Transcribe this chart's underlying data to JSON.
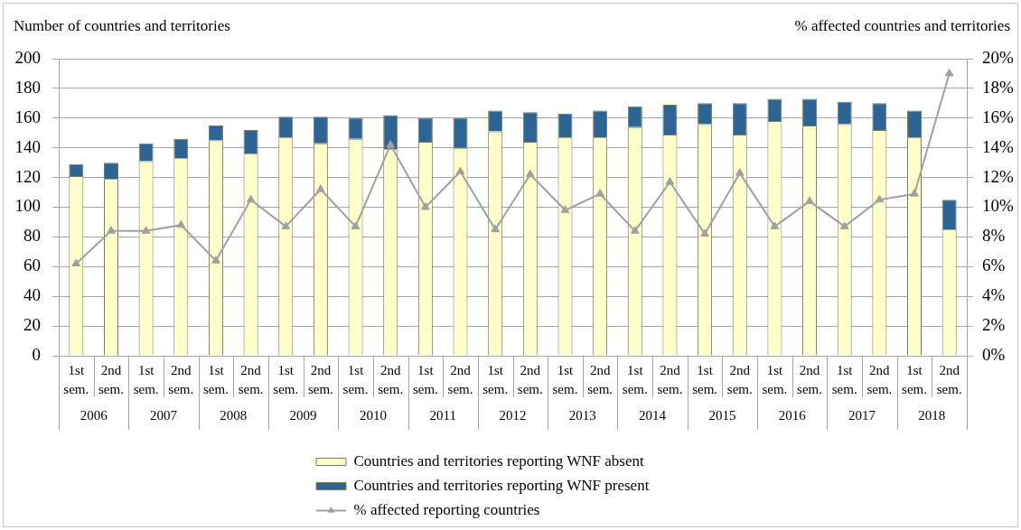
{
  "chart_data": {
    "type": "bar",
    "stacked": true,
    "ylabel": "Number of countries and territories",
    "y2label": "% affected countries and territories",
    "categories": [
      "1st sem.",
      "2nd sem.",
      "1st sem.",
      "2nd sem.",
      "1st sem.",
      "2nd sem.",
      "1st sem.",
      "2nd sem.",
      "1st sem.",
      "2nd sem.",
      "1st sem.",
      "2nd sem.",
      "1st sem.",
      "2nd sem.",
      "1st sem.",
      "2nd sem.",
      "1st sem.",
      "2nd sem.",
      "1st sem.",
      "2nd sem.",
      "1st sem.",
      "2nd sem.",
      "1st sem.",
      "2nd sem.",
      "1st sem.",
      "2nd sem."
    ],
    "annotations": [
      "2006",
      "2007",
      "2008",
      "2009",
      "2010",
      "2011",
      "2012",
      "2013",
      "2014",
      "2015",
      "2016",
      "2017",
      "2018"
    ],
    "series": [
      {
        "name": "Countries and territories reporting WNF absent",
        "color": "#ffffcc",
        "values": [
          121,
          119,
          131,
          133,
          145,
          136,
          147,
          143,
          146,
          139,
          144,
          140,
          151,
          144,
          147,
          147,
          154,
          149,
          156,
          149,
          158,
          155,
          156,
          152,
          147,
          85
        ]
      },
      {
        "name": "Countries and territories reporting WNF present",
        "color": "#2c6494",
        "values": [
          8,
          11,
          12,
          13,
          10,
          16,
          14,
          18,
          14,
          23,
          16,
          20,
          14,
          20,
          16,
          18,
          14,
          20,
          14,
          21,
          15,
          18,
          15,
          18,
          18,
          20
        ]
      },
      {
        "name": "% affected reporting countries",
        "type": "line",
        "axis": "y2",
        "color": "#a0a0a0",
        "values": [
          6.2,
          8.4,
          8.4,
          8.8,
          6.4,
          10.5,
          8.7,
          11.2,
          8.7,
          14.2,
          10.0,
          12.4,
          8.5,
          12.2,
          9.8,
          10.9,
          8.4,
          11.7,
          8.2,
          12.3,
          8.7,
          10.4,
          8.7,
          10.5,
          10.9,
          19.0
        ]
      }
    ],
    "marker": "triangle",
    "ylim": [
      0,
      200
    ],
    "yticks": [
      0,
      20,
      40,
      60,
      80,
      100,
      120,
      140,
      160,
      180,
      200
    ],
    "y2lim": [
      0,
      20
    ],
    "y2ticks": [
      {
        "value": 0,
        "label": "0%"
      },
      {
        "value": 2,
        "label": "2%"
      },
      {
        "value": 4,
        "label": "4%"
      },
      {
        "value": 6,
        "label": "6%"
      },
      {
        "value": 8,
        "label": "8%"
      },
      {
        "value": 10,
        "label": "10%"
      },
      {
        "value": 12,
        "label": "12%"
      },
      {
        "value": 14,
        "label": "14%"
      },
      {
        "value": 16,
        "label": "16%"
      },
      {
        "value": 18,
        "label": "18%"
      },
      {
        "value": 20,
        "label": "20%"
      }
    ],
    "grid": "y",
    "legend": "bottom"
  }
}
